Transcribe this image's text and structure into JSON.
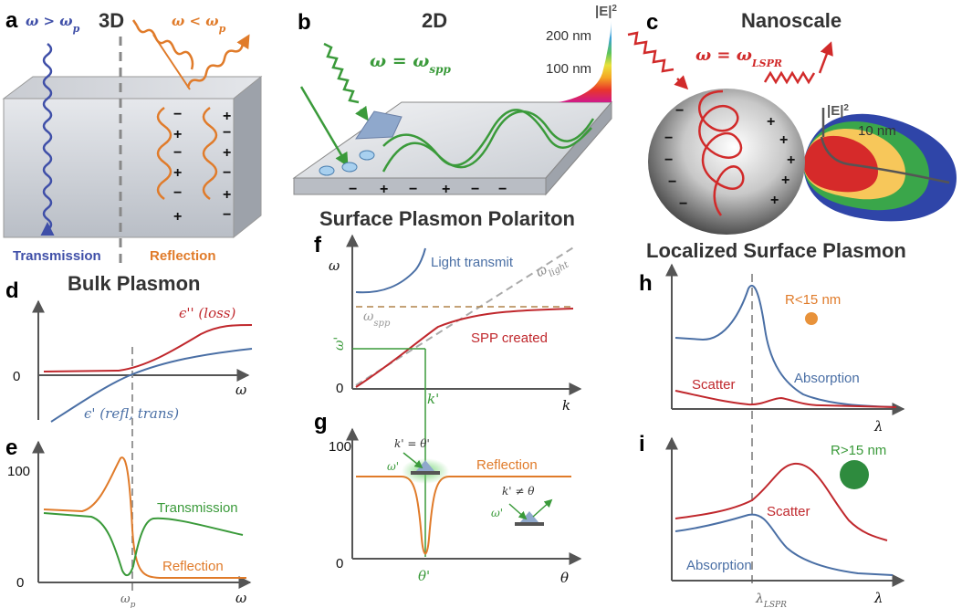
{
  "colors": {
    "blue": "#3f4fa8",
    "orange": "#e07b2a",
    "green": "#3a9a3a",
    "red": "#c8222a",
    "gray": "#999999",
    "curve_blue": "#4a6fa5",
    "curve_red": "#c0282d"
  },
  "panels": {
    "a": {
      "letter": "a",
      "title": "3D",
      "left_eq": "ω > ω",
      "left_eq_sub": "p",
      "right_eq": "ω < ω",
      "right_eq_sub": "p",
      "transmission": "Transmission",
      "reflection": "Reflection"
    },
    "b": {
      "letter": "b",
      "title": "2D",
      "eq": "ω = ω",
      "eq_sub": "spp",
      "field_label": "|E|",
      "field_sup": "2",
      "d200": "200 nm",
      "d100": "100 nm"
    },
    "c": {
      "letter": "c",
      "title": "Nanoscale",
      "eq": "ω = ω",
      "eq_sub": "LSPR",
      "field_label": "|E|",
      "field_sup": "2",
      "d10": "10 nm"
    },
    "spp_title": "Surface Plasmon Polariton",
    "lsp_title": "Localized Surface Plasmon",
    "bulk_title": "Bulk Plasmon",
    "d": {
      "letter": "d",
      "loss_label": "ϵ'' (loss)",
      "refl_label": "ϵ' (refl, trans)",
      "zero": "0",
      "xlabel": "ω"
    },
    "e": {
      "letter": "e",
      "y100": "100",
      "y0": "0",
      "transmission": "Transmission",
      "reflection": "Reflection",
      "xtick": "ω",
      "xtick_sub": "p",
      "xlabel": "ω"
    },
    "f": {
      "letter": "f",
      "ylabel": "ω",
      "y0": "0",
      "light_transmit": "Light transmit",
      "omega_light": "ω",
      "omega_light_sub": "light",
      "omega_spp": "ω",
      "omega_spp_sub": "spp",
      "omega_prime": "ω'",
      "spp_created": "SPP created",
      "k_prime": "k'",
      "xlabel": "k"
    },
    "g": {
      "letter": "g",
      "y100": "100",
      "y0": "0",
      "reflection": "Reflection",
      "eq1": "k' = θ'",
      "eq2": "k' ≠ θ",
      "omega_prime1": "ω'",
      "omega_prime2": "ω'",
      "theta_prime": "θ'",
      "xlabel": "θ"
    },
    "h": {
      "letter": "h",
      "size": "R<15 nm",
      "scatter": "Scatter",
      "absorption": "Absorption",
      "xlabel": "λ"
    },
    "i": {
      "letter": "i",
      "size": "R>15 nm",
      "scatter": "Scatter",
      "absorption": "Absorption",
      "xlabel": "λ",
      "xtick": "λ",
      "xtick_sub": "LSPR"
    }
  }
}
